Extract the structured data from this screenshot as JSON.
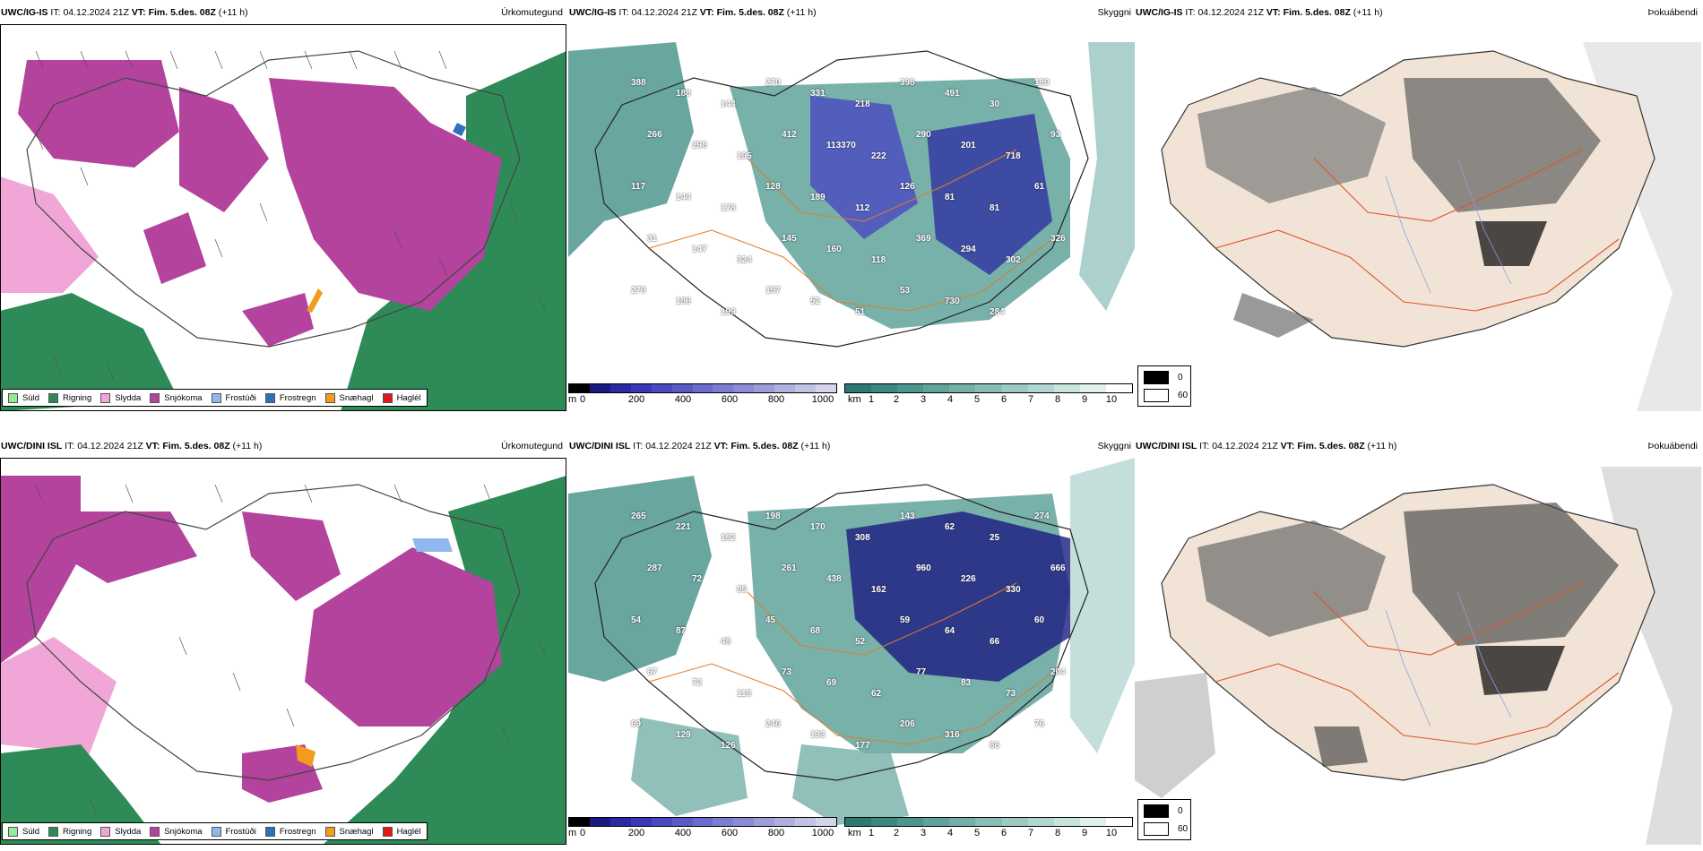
{
  "rows": [
    {
      "model_label": "UWC/IG-IS"
    },
    {
      "model_label": "UWC/DINI ISL"
    }
  ],
  "header": {
    "it_label": "IT:",
    "it_value": "04.12.2024 21Z",
    "vt_label": "VT:",
    "vt_value": "Fim. 5.des. 08Z",
    "lead": "(+11 h)"
  },
  "panels": {
    "precip": {
      "title": "Úrkomutegund"
    },
    "visibility": {
      "title": "Skyggni"
    },
    "fog": {
      "title": "Þokuábendi"
    }
  },
  "precip_legend": [
    {
      "label": "Súld",
      "color": "#90ee90"
    },
    {
      "label": "Rigning",
      "color": "#2e8b57"
    },
    {
      "label": "Slydda",
      "color": "#f0a6d6"
    },
    {
      "label": "Snjókoma",
      "color": "#b3439c"
    },
    {
      "label": "Frostúði",
      "color": "#8fb8ee"
    },
    {
      "label": "Frostregn",
      "color": "#2f6fc0"
    },
    {
      "label": "Snæhagl",
      "color": "#f39c1c"
    },
    {
      "label": "Haglél",
      "color": "#e01818"
    }
  ],
  "cloudbase_scale": {
    "unit": "m",
    "ticks": [
      "0",
      "200",
      "400",
      "600",
      "800",
      "1000"
    ],
    "colors": [
      "#000000",
      "#1a1a80",
      "#2a2aa0",
      "#3838b8",
      "#4a4ac0",
      "#5a5ac6",
      "#6b6bcc",
      "#7c7cd0",
      "#8c8cd4",
      "#9d9dd8",
      "#b0b0dc",
      "#c2c2e2",
      "#d4d4ea"
    ]
  },
  "visibility_scale": {
    "unit": "km",
    "ticks": [
      "1",
      "2",
      "3",
      "4",
      "5",
      "6",
      "7",
      "8",
      "9",
      "10"
    ],
    "colors": [
      "#2a7a72",
      "#3a8880",
      "#4d968e",
      "#60a39b",
      "#74b0a8",
      "#88bdb5",
      "#9ccac3",
      "#b1d7d0",
      "#c8e4de",
      "#e0f0ec",
      "#ffffff"
    ]
  },
  "fog_legend": [
    {
      "label": "0",
      "color": "#000000"
    },
    {
      "label": "60",
      "color": "#ffffff"
    }
  ],
  "cloudbase_labels_top": [
    "388",
    "188",
    "144",
    "270",
    "331",
    "218",
    "398",
    "491",
    "30",
    "189",
    "266",
    "298",
    "195",
    "412",
    "113370",
    "222",
    "290",
    "201",
    "718",
    "93",
    "117",
    "144",
    "178",
    "128",
    "189",
    "112",
    "126",
    "81",
    "81",
    "61",
    "31",
    "147",
    "324",
    "145",
    "160",
    "118",
    "369",
    "294",
    "302",
    "326",
    "279",
    "186",
    "199",
    "157",
    "52",
    "51",
    "53",
    "730",
    "284"
  ],
  "cloudbase_labels_bottom": [
    "265",
    "221",
    "182",
    "198",
    "170",
    "308",
    "143",
    "62",
    "25",
    "274",
    "287",
    "72",
    "85",
    "261",
    "438",
    "162",
    "960",
    "226",
    "330",
    "666",
    "54",
    "87",
    "48",
    "45",
    "68",
    "52",
    "59",
    "64",
    "66",
    "60",
    "67",
    "72",
    "118",
    "73",
    "69",
    "62",
    "77",
    "83",
    "73",
    "204",
    "69",
    "129",
    "126",
    "246",
    "133",
    "177",
    "206",
    "316",
    "86",
    "76"
  ]
}
